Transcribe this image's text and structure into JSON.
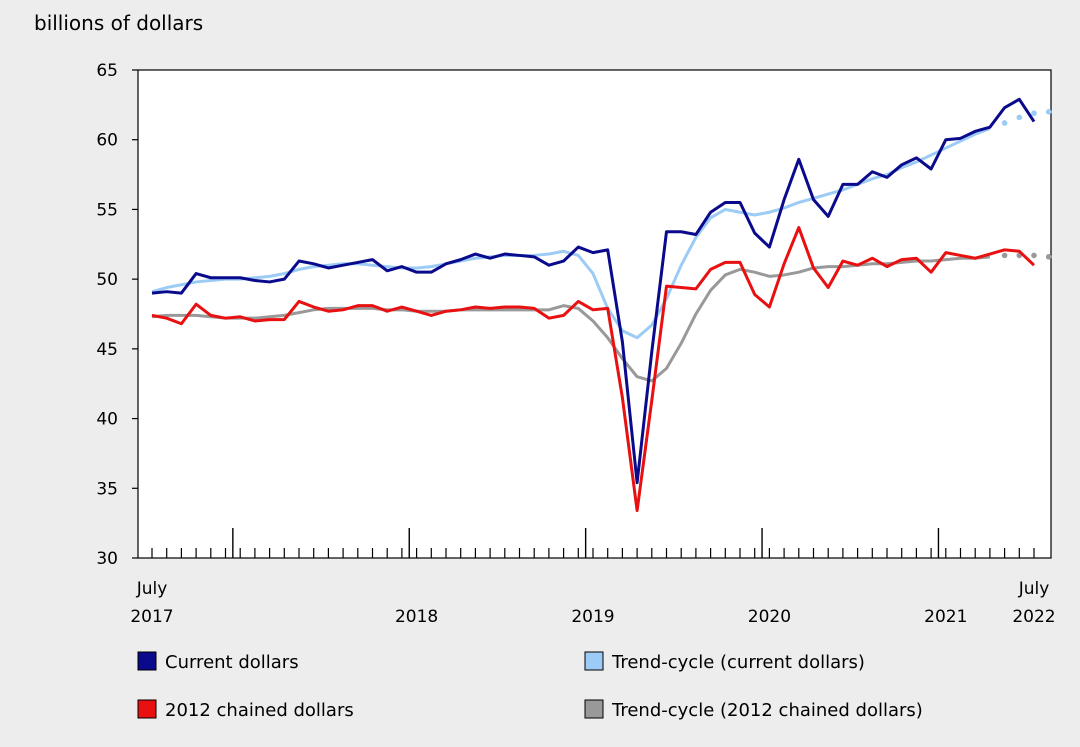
{
  "chart_data": {
    "type": "line",
    "ylabel": "billions of dollars",
    "ylim": [
      30,
      65
    ],
    "yticks": [
      30,
      35,
      40,
      45,
      50,
      55,
      60,
      65
    ],
    "x_start": "July 2017",
    "x_end": "July 2022",
    "x_labels": [
      {
        "month": 0,
        "top": "July",
        "bottom": "2017"
      },
      {
        "month": 18,
        "top": "",
        "bottom": "2018"
      },
      {
        "month": 30,
        "top": "",
        "bottom": "2019"
      },
      {
        "month": 42,
        "top": "",
        "bottom": "2020"
      },
      {
        "month": 54,
        "top": "",
        "bottom": "2021"
      },
      {
        "month": 60,
        "top": "July",
        "bottom": "2022"
      }
    ],
    "year_boundaries": [
      6,
      18,
      30,
      42,
      54
    ],
    "grid": false,
    "legend_position": "bottom",
    "series": [
      {
        "name": "Current dollars",
        "color": "#0a0a8c",
        "style": "solid",
        "values": [
          49.0,
          49.1,
          49.0,
          50.4,
          50.1,
          50.1,
          50.1,
          49.9,
          49.8,
          50.0,
          51.3,
          51.1,
          50.8,
          51.0,
          51.2,
          51.4,
          50.6,
          50.9,
          50.5,
          50.5,
          51.1,
          51.4,
          51.8,
          51.5,
          51.8,
          51.7,
          51.6,
          51.0,
          51.3,
          52.3,
          51.9,
          52.1,
          45.5,
          35.4,
          44.8,
          53.4,
          53.4,
          53.2,
          54.8,
          55.5,
          55.5,
          53.3,
          52.3,
          55.7,
          58.6,
          55.7,
          54.5,
          56.8,
          56.8,
          57.7,
          57.3,
          58.2,
          58.7,
          57.9,
          60.0,
          60.1,
          60.6,
          60.9,
          62.3,
          62.9,
          61.3
        ]
      },
      {
        "name": "Trend-cycle (current dollars)",
        "color": "#9ccbf5",
        "style": "solid",
        "dotted_last": 4,
        "values": [
          49.1,
          49.4,
          49.6,
          49.8,
          49.9,
          50.0,
          50.0,
          50.1,
          50.2,
          50.4,
          50.7,
          50.9,
          51.0,
          51.1,
          51.1,
          51.0,
          50.9,
          50.8,
          50.8,
          50.9,
          51.1,
          51.3,
          51.5,
          51.6,
          51.7,
          51.7,
          51.7,
          51.8,
          52.0,
          51.7,
          50.4,
          47.9,
          46.3,
          45.8,
          46.7,
          48.6,
          51.0,
          53.0,
          54.4,
          55.0,
          54.8,
          54.6,
          54.8,
          55.1,
          55.5,
          55.8,
          56.1,
          56.4,
          56.8,
          57.2,
          57.5,
          58.0,
          58.4,
          58.9,
          59.4,
          59.9,
          60.4,
          60.8,
          61.2,
          61.6,
          61.9,
          62.0
        ]
      },
      {
        "name": "2012 chained dollars",
        "color": "#e81010",
        "style": "solid",
        "values": [
          47.4,
          47.2,
          46.8,
          48.2,
          47.4,
          47.2,
          47.3,
          47.0,
          47.1,
          47.1,
          48.4,
          48.0,
          47.7,
          47.8,
          48.1,
          48.1,
          47.7,
          48.0,
          47.7,
          47.4,
          47.7,
          47.8,
          48.0,
          47.9,
          48.0,
          48.0,
          47.9,
          47.2,
          47.4,
          48.4,
          47.8,
          47.9,
          41.5,
          33.4,
          41.3,
          49.5,
          49.4,
          49.3,
          50.7,
          51.2,
          51.2,
          48.9,
          48.0,
          51.1,
          53.7,
          50.8,
          49.4,
          51.3,
          51.0,
          51.5,
          50.9,
          51.4,
          51.5,
          50.5,
          51.9,
          51.7,
          51.5,
          51.8,
          52.1,
          52.0,
          51.0
        ]
      },
      {
        "name": "Trend-cycle (2012 chained dollars)",
        "color": "#999999",
        "style": "solid",
        "dotted_last": 4,
        "values": [
          47.3,
          47.4,
          47.4,
          47.4,
          47.3,
          47.2,
          47.2,
          47.2,
          47.3,
          47.4,
          47.6,
          47.8,
          47.9,
          47.9,
          47.9,
          47.9,
          47.8,
          47.8,
          47.7,
          47.7,
          47.7,
          47.8,
          47.8,
          47.8,
          47.8,
          47.8,
          47.8,
          47.8,
          48.1,
          47.9,
          47.0,
          45.8,
          44.3,
          43.0,
          42.7,
          43.6,
          45.4,
          47.5,
          49.2,
          50.3,
          50.7,
          50.5,
          50.2,
          50.3,
          50.5,
          50.8,
          50.9,
          50.9,
          51.0,
          51.1,
          51.1,
          51.2,
          51.3,
          51.3,
          51.4,
          51.5,
          51.5,
          51.6,
          51.7,
          51.7,
          51.7,
          51.6
        ]
      }
    ]
  }
}
